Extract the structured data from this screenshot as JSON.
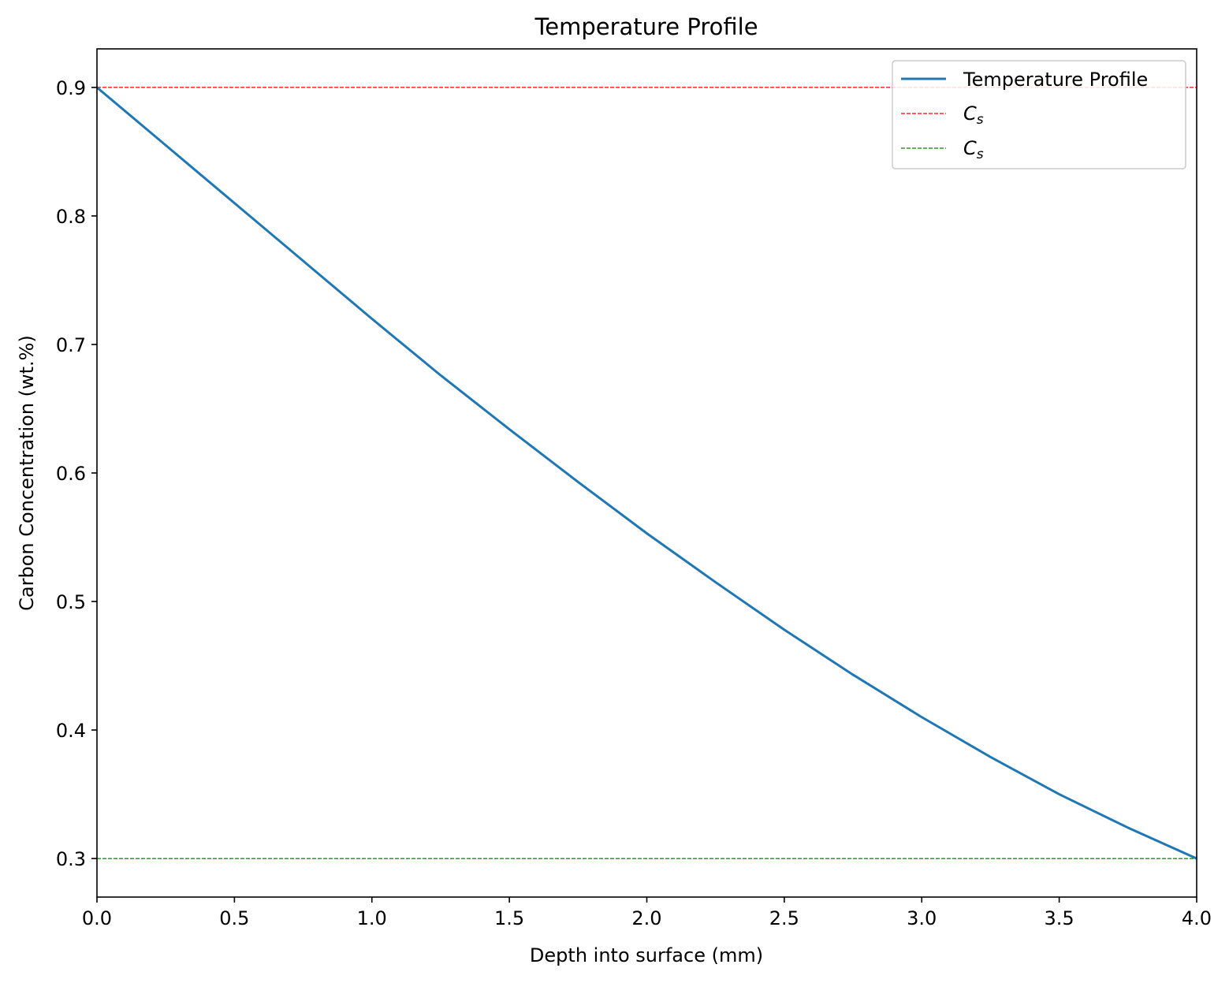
{
  "chart_data": {
    "type": "line",
    "title": "Temperature Profile",
    "xlabel": "Depth into surface (mm)",
    "ylabel": "Carbon Concentration (wt.%)",
    "xlim": [
      0,
      4
    ],
    "ylim": [
      0.27,
      0.93
    ],
    "xticks": [
      0,
      0.5,
      1,
      1.5,
      2,
      2.5,
      3,
      3.5,
      4
    ],
    "xtick_labels": [
      "0.0",
      "0.5",
      "1.0",
      "1.5",
      "2.0",
      "2.5",
      "3.0",
      "3.5",
      "4.0"
    ],
    "yticks": [
      0.3,
      0.4,
      0.5,
      0.6,
      0.7,
      0.8,
      0.9
    ],
    "ytick_labels": [
      "0.3",
      "0.4",
      "0.5",
      "0.6",
      "0.7",
      "0.8",
      "0.9"
    ],
    "grid": false,
    "legend_position": "top-right",
    "series": [
      {
        "name": "Temperature Profile",
        "color": "#1f77b4",
        "style": "solid",
        "x": [
          0,
          0.25,
          0.5,
          0.75,
          1,
          1.25,
          1.5,
          1.75,
          2,
          2.25,
          2.5,
          2.75,
          3,
          3.25,
          3.5,
          3.75,
          4
        ],
        "y": [
          0.9,
          0.855,
          0.81,
          0.765,
          0.72,
          0.676,
          0.634,
          0.593,
          0.553,
          0.515,
          0.478,
          0.443,
          0.41,
          0.379,
          0.35,
          0.324,
          0.3
        ]
      }
    ],
    "reference_lines": [
      {
        "label_main": "C",
        "label_sub": "s",
        "y": 0.9,
        "color": "#ff0000",
        "style": "dashed"
      },
      {
        "label_main": "C",
        "label_sub": "s",
        "y": 0.3,
        "color": "#008000",
        "style": "dashed"
      }
    ]
  }
}
